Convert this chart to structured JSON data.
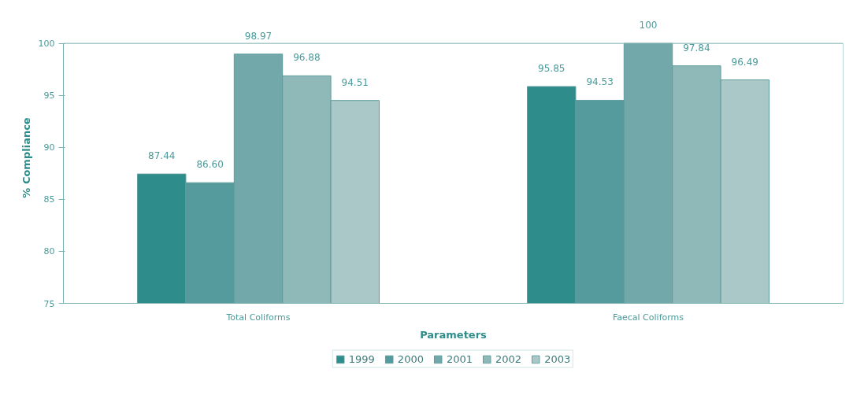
{
  "chart_data": {
    "type": "bar",
    "xlabel": "Parameters",
    "ylabel": "% Compliance",
    "categories": [
      "Total Coliforms",
      "Faecal Coliforms"
    ],
    "series": [
      {
        "name": "1999",
        "color": "#2e8c8a",
        "values": [
          87.44,
          95.85
        ]
      },
      {
        "name": "2000",
        "color": "#559b9d",
        "values": [
          86.6,
          94.53
        ]
      },
      {
        "name": "2001",
        "color": "#72a8aa",
        "values": [
          98.97,
          100
        ]
      },
      {
        "name": "2002",
        "color": "#8fb8b8",
        "values": [
          96.88,
          97.84
        ]
      },
      {
        "name": "2003",
        "color": "#abc8c8",
        "values": [
          94.51,
          96.49
        ]
      }
    ],
    "value_labels": [
      [
        "87.44",
        "95.85"
      ],
      [
        "86.60",
        "94.53"
      ],
      [
        "98.97",
        "100"
      ],
      [
        "96.88",
        "97.84"
      ],
      [
        "94.51",
        "96.49"
      ]
    ],
    "ylim": [
      75,
      100
    ],
    "yticks": [
      75,
      80,
      85,
      90,
      95,
      100
    ],
    "grid": false,
    "legend": "bottom"
  }
}
